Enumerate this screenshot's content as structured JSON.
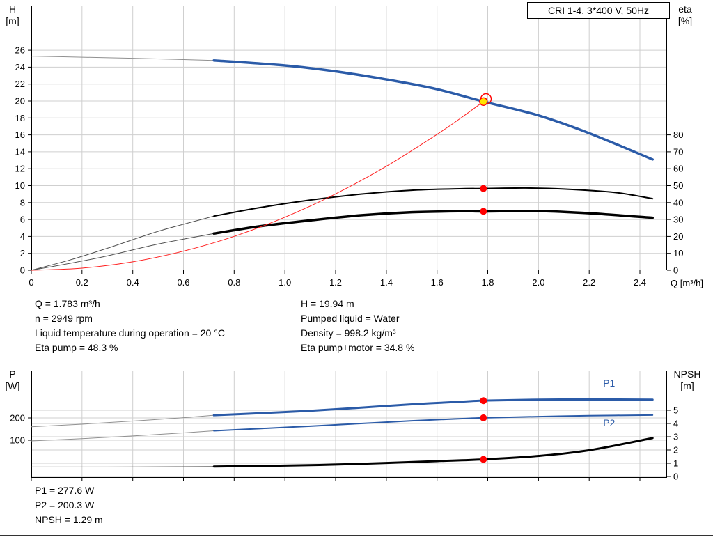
{
  "colors": {
    "grid": "#cfcfcf",
    "frame": "#000000",
    "curve_blue": "#2b5ba8",
    "marker_red": "#ff0000",
    "duty_yellow": "#ffe400"
  },
  "info_top": {
    "left": [
      "Q = 1.783 m³/h",
      "n = 2949 rpm",
      "Liquid temperature during operation = 20 °C",
      "Eta pump = 48.3 %"
    ],
    "right": [
      "H = 19.94 m",
      "Pumped liquid = Water",
      "Density = 998.2 kg/m³",
      "Eta pump+motor = 34.8 %"
    ]
  },
  "info_bottom": [
    "P1 = 277.6 W",
    "P2 = 200.3 W",
    "NPSH = 1.29 m"
  ],
  "chart_data": [
    {
      "id": "qh-eta-chart",
      "type": "line",
      "title": "CRI 1-4, 3*400 V, 50Hz",
      "x": {
        "min": 0,
        "max": 2.507,
        "grid": true,
        "title": "Q [m³/h]",
        "ticks": [
          0,
          0.2,
          0.4,
          0.6,
          0.8,
          1.0,
          1.2,
          1.4,
          1.6,
          1.8,
          2.0,
          2.2,
          2.4
        ],
        "labels": [
          "0",
          "0.2",
          "0.4",
          "0.6",
          "0.8",
          "1.0",
          "1.2",
          "1.4",
          "1.6",
          "1.8",
          "2.0",
          "2.2",
          "2.4"
        ]
      },
      "y_left": {
        "min": 0,
        "max": 31.28,
        "grid": true,
        "title": [
          "H",
          "[m]"
        ],
        "ticks": [
          0,
          2,
          4,
          6,
          8,
          10,
          12,
          14,
          16,
          18,
          20,
          22,
          24,
          26
        ]
      },
      "y_right": {
        "min": 0,
        "max": 156.4,
        "grid": false,
        "title": [
          "eta",
          "[%]"
        ],
        "ticks": [
          0,
          10,
          20,
          30,
          40,
          50,
          60,
          70,
          80
        ]
      },
      "series": [
        {
          "name": "qh-curve-extension",
          "axis": "left",
          "color": "#909090",
          "width": 1,
          "points": [
            [
              0,
              25.3
            ],
            [
              0.2,
              25.18
            ],
            [
              0.4,
              25.05
            ],
            [
              0.6,
              24.9
            ],
            [
              0.72,
              24.8
            ]
          ]
        },
        {
          "name": "qh-curve",
          "axis": "left",
          "color": "#2b5ba8",
          "width": 3.5,
          "points": [
            [
              0.72,
              24.8
            ],
            [
              1.0,
              24.2
            ],
            [
              1.2,
              23.5
            ],
            [
              1.4,
              22.55
            ],
            [
              1.6,
              21.4
            ],
            [
              1.783,
              19.94
            ],
            [
              2.0,
              18.3
            ],
            [
              2.2,
              16.2
            ],
            [
              2.45,
              13.1
            ]
          ]
        },
        {
          "name": "eta-pump-extension",
          "axis": "right",
          "color": "#505050",
          "width": 1,
          "points": [
            [
              0,
              0
            ],
            [
              0.15,
              6
            ],
            [
              0.3,
              13
            ],
            [
              0.5,
              23
            ],
            [
              0.72,
              32
            ]
          ]
        },
        {
          "name": "eta-pump-curve",
          "axis": "right",
          "color": "#000000",
          "width": 2,
          "points": [
            [
              0.72,
              32
            ],
            [
              0.9,
              37
            ],
            [
              1.1,
              41.5
            ],
            [
              1.3,
              45
            ],
            [
              1.5,
              47.3
            ],
            [
              1.7,
              48.2
            ],
            [
              1.783,
              48.3
            ],
            [
              1.95,
              48.6
            ],
            [
              2.1,
              48
            ],
            [
              2.3,
              46
            ],
            [
              2.45,
              42.3
            ]
          ]
        },
        {
          "name": "eta-pump-motor-extension",
          "axis": "right",
          "color": "#505050",
          "width": 1,
          "points": [
            [
              0,
              0
            ],
            [
              0.15,
              4
            ],
            [
              0.3,
              8.5
            ],
            [
              0.5,
              15.5
            ],
            [
              0.72,
              21.7
            ]
          ]
        },
        {
          "name": "eta-pump-motor-curve",
          "axis": "right",
          "color": "#000000",
          "width": 3.5,
          "points": [
            [
              0.72,
              21.7
            ],
            [
              0.9,
              26
            ],
            [
              1.1,
              29.5
            ],
            [
              1.3,
              32.5
            ],
            [
              1.5,
              34.3
            ],
            [
              1.7,
              34.9
            ],
            [
              1.783,
              34.8
            ],
            [
              2.0,
              35
            ],
            [
              2.2,
              33.7
            ],
            [
              2.45,
              31
            ]
          ]
        },
        {
          "name": "system-curve",
          "axis": "left",
          "color": "#ff2020",
          "width": 1,
          "points": [
            [
              0,
              0
            ],
            [
              0.2,
              0.25
            ],
            [
              0.4,
              1.0
            ],
            [
              0.6,
              2.26
            ],
            [
              0.8,
              4.01
            ],
            [
              1.0,
              6.27
            ],
            [
              1.2,
              9.03
            ],
            [
              1.4,
              12.29
            ],
            [
              1.6,
              16.06
            ],
            [
              1.7,
              18.13
            ],
            [
              1.783,
              19.94
            ]
          ]
        }
      ],
      "markers": [
        {
          "name": "duty-point-requested",
          "type": "open-circle",
          "axis": "left",
          "x": 1.793,
          "y": 20.25,
          "r": 7.5,
          "stroke": "#ff0000"
        },
        {
          "name": "duty-point-actual",
          "type": "dot",
          "axis": "left",
          "x": 1.783,
          "y": 19.94,
          "r": 5.5,
          "fill": "#ffe400",
          "stroke": "#ff0000"
        },
        {
          "name": "eta-pump-point",
          "type": "dot",
          "axis": "right",
          "x": 1.783,
          "y": 48.3,
          "r": 5,
          "fill": "#ff0000"
        },
        {
          "name": "eta-pump-motor-point",
          "type": "dot",
          "axis": "right",
          "x": 1.783,
          "y": 34.8,
          "r": 5,
          "fill": "#ff0000"
        }
      ]
    },
    {
      "id": "power-npsh-chart",
      "type": "line",
      "x": {
        "min": 0,
        "max": 2.507,
        "grid": true,
        "ticks": [
          0,
          0.2,
          0.4,
          0.6,
          0.8,
          1.0,
          1.2,
          1.4,
          1.6,
          1.8,
          2.0,
          2.2,
          2.4
        ]
      },
      "y_left": {
        "min": -68.75,
        "max": 412.5,
        "grid": true,
        "title": [
          "P",
          "[W]"
        ],
        "ticks": [
          100,
          200
        ]
      },
      "y_right": {
        "min": -0.105,
        "max": 8.0,
        "grid": true,
        "title": [
          "NPSH",
          "[m]"
        ],
        "ticks": [
          0,
          1,
          2,
          3,
          4,
          5
        ]
      },
      "series": [
        {
          "name": "p1-extension",
          "axis": "left",
          "color": "#909090",
          "width": 1,
          "points": [
            [
              0,
              160
            ],
            [
              0.2,
              172
            ],
            [
              0.4,
              186
            ],
            [
              0.6,
              201
            ],
            [
              0.72,
              212
            ]
          ]
        },
        {
          "name": "p1-curve",
          "axis": "left",
          "color": "#2b5ba8",
          "width": 3,
          "points": [
            [
              0.72,
              212
            ],
            [
              0.9,
              221
            ],
            [
              1.1,
              232
            ],
            [
              1.3,
              246
            ],
            [
              1.5,
              261
            ],
            [
              1.7,
              273
            ],
            [
              1.783,
              277.6
            ],
            [
              2.0,
              282
            ],
            [
              2.2,
              283
            ],
            [
              2.45,
              282
            ]
          ]
        },
        {
          "name": "p2-extension",
          "axis": "left",
          "color": "#909090",
          "width": 1,
          "points": [
            [
              0,
              97
            ],
            [
              0.2,
              107
            ],
            [
              0.4,
              119
            ],
            [
              0.6,
              133
            ],
            [
              0.72,
              142
            ]
          ]
        },
        {
          "name": "p2-curve",
          "axis": "left",
          "color": "#2b5ba8",
          "width": 2,
          "points": [
            [
              0.72,
              142
            ],
            [
              0.9,
              152
            ],
            [
              1.1,
              163
            ],
            [
              1.3,
              175
            ],
            [
              1.5,
              187
            ],
            [
              1.7,
              197
            ],
            [
              1.783,
              200.3
            ],
            [
              2.0,
              206
            ],
            [
              2.2,
              210
            ],
            [
              2.45,
              213
            ]
          ]
        },
        {
          "name": "npsh-extension",
          "axis": "right",
          "color": "#606060",
          "width": 1,
          "points": [
            [
              0,
              0.72
            ],
            [
              0.3,
              0.72
            ],
            [
              0.5,
              0.73
            ],
            [
              0.72,
              0.75
            ]
          ]
        },
        {
          "name": "npsh-curve",
          "axis": "right",
          "color": "#000000",
          "width": 3,
          "points": [
            [
              0.72,
              0.75
            ],
            [
              1.0,
              0.82
            ],
            [
              1.2,
              0.9
            ],
            [
              1.4,
              1.02
            ],
            [
              1.6,
              1.16
            ],
            [
              1.783,
              1.29
            ],
            [
              2.0,
              1.55
            ],
            [
              2.2,
              1.98
            ],
            [
              2.45,
              2.9
            ]
          ]
        }
      ],
      "markers": [
        {
          "name": "p1-point",
          "type": "dot",
          "axis": "left",
          "x": 1.783,
          "y": 277.6,
          "r": 5,
          "fill": "#ff0000"
        },
        {
          "name": "p2-point",
          "type": "dot",
          "axis": "left",
          "x": 1.783,
          "y": 200.3,
          "r": 5,
          "fill": "#ff0000"
        },
        {
          "name": "npsh-point",
          "type": "dot",
          "axis": "right",
          "x": 1.783,
          "y": 1.29,
          "r": 5,
          "fill": "#ff0000"
        }
      ],
      "labels": [
        {
          "name": "p1-series-label",
          "text": "P1",
          "axis": "left",
          "x": 2.255,
          "y": 340,
          "color": "#2b5ba8"
        },
        {
          "name": "p2-series-label",
          "text": "P2",
          "axis": "left",
          "x": 2.255,
          "y": 163,
          "color": "#2b5ba8"
        }
      ]
    }
  ]
}
